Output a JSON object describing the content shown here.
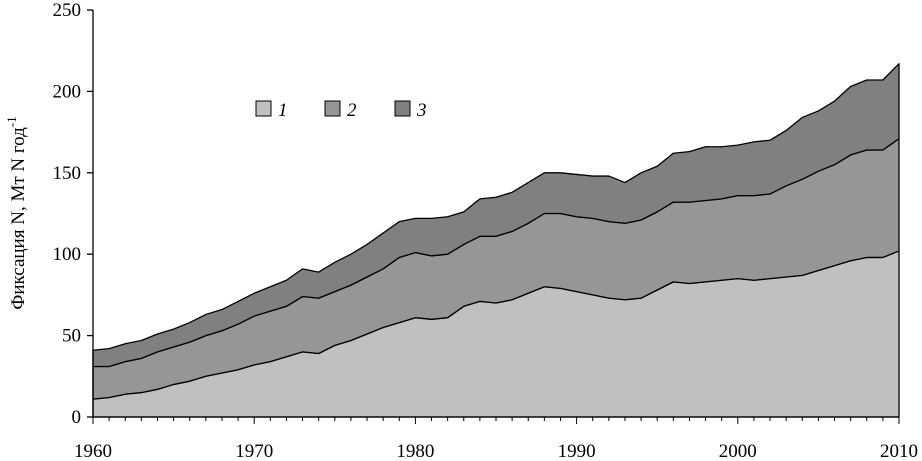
{
  "chart_data": {
    "type": "area",
    "stacked": true,
    "title": "",
    "xlabel": "",
    "ylabel": "Фиксация N, Мт N год",
    "ylabel_superscript": "-1",
    "xlim": [
      1960,
      2010
    ],
    "ylim": [
      0,
      250
    ],
    "xticks": [
      1960,
      1970,
      1980,
      1990,
      2000,
      2010
    ],
    "yticks": [
      0,
      50,
      100,
      150,
      200,
      250
    ],
    "grid": false,
    "legend_position": "top-left",
    "x": [
      1960,
      1961,
      1962,
      1963,
      1964,
      1965,
      1966,
      1967,
      1968,
      1969,
      1970,
      1971,
      1972,
      1973,
      1974,
      1975,
      1976,
      1977,
      1978,
      1979,
      1980,
      1981,
      1982,
      1983,
      1984,
      1985,
      1986,
      1987,
      1988,
      1989,
      1990,
      1991,
      1992,
      1993,
      1994,
      1995,
      1996,
      1997,
      1998,
      1999,
      2000,
      2001,
      2002,
      2003,
      2004,
      2005,
      2006,
      2007,
      2008,
      2009,
      2010
    ],
    "series": [
      {
        "name": "1",
        "color": "#c0c0c0",
        "values": [
          11,
          12,
          14,
          15,
          17,
          20,
          22,
          25,
          27,
          29,
          32,
          34,
          37,
          40,
          39,
          44,
          47,
          51,
          55,
          58,
          61,
          60,
          61,
          68,
          71,
          70,
          72,
          76,
          80,
          79,
          77,
          75,
          73,
          72,
          73,
          78,
          83,
          82,
          83,
          84,
          85,
          84,
          85,
          86,
          87,
          90,
          93,
          96,
          98,
          98,
          102
        ]
      },
      {
        "name": "2",
        "color": "#969696",
        "values": [
          20,
          19,
          20,
          21,
          23,
          23,
          24,
          25,
          26,
          28,
          30,
          31,
          31,
          34,
          34,
          33,
          34,
          35,
          36,
          40,
          40,
          39,
          39,
          38,
          40,
          41,
          42,
          43,
          45,
          46,
          46,
          47,
          47,
          47,
          48,
          48,
          49,
          50,
          50,
          50,
          51,
          52,
          52,
          56,
          59,
          61,
          62,
          65,
          66,
          66,
          69
        ]
      },
      {
        "name": "3",
        "color": "#808080",
        "values": [
          10,
          11,
          11,
          11,
          11,
          11,
          12,
          13,
          13,
          14,
          14,
          15,
          16,
          17,
          16,
          18,
          19,
          20,
          22,
          22,
          21,
          23,
          23,
          20,
          23,
          24,
          24,
          25,
          25,
          25,
          26,
          26,
          28,
          25,
          29,
          28,
          30,
          31,
          33,
          32,
          31,
          33,
          33,
          34,
          38,
          37,
          39,
          42,
          43,
          43,
          46
        ]
      }
    ]
  }
}
